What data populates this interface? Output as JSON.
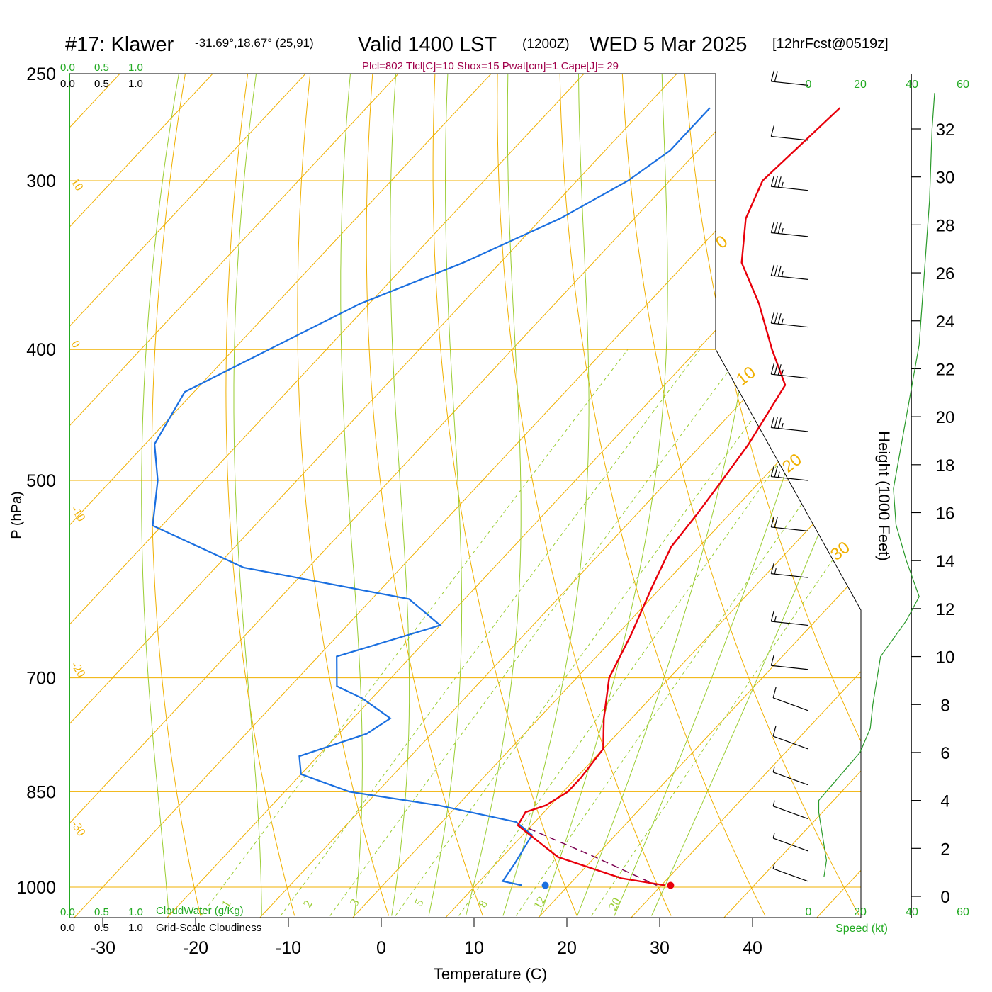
{
  "header": {
    "station": "#17: Klawer",
    "coords": "-31.69°,18.67° (25,91)",
    "valid": "Valid 1400 LST",
    "utc": "(1200Z)",
    "date": "WED 5 Mar 2025",
    "forecast": "[12hrFcst@0519z]",
    "indices": "Plcl=802 Tlcl[C]=10 Shox=15 Pwat[cm]=1 Cape[J]= 29"
  },
  "cloud_scale": {
    "top_green": [
      "0.0",
      "0.5",
      "1.0"
    ],
    "top_black": [
      "0.0",
      "0.5",
      "1.0"
    ],
    "bottom_green": [
      "0.0",
      "0.5",
      "1.0"
    ],
    "bottom_black": [
      "0.0",
      "0.5",
      "1.0"
    ],
    "cloudwater_label": "CloudWater (g/Kg)",
    "cloudiness_label": "Grid-Scale Cloudiness"
  },
  "speed_axis": {
    "ticks": [
      "0",
      "20",
      "40",
      "60"
    ],
    "label": "Speed (kt)"
  },
  "colors": {
    "temperature": "#e8000b",
    "dewpoint": "#1a6fe0",
    "isotherm": "#f0b000",
    "dry_adiabat": "#f0b000",
    "moist_adiabat": "#9acd32",
    "mixing_ratio": "#9acd32",
    "parcel": "#7a0050",
    "speed": "#2a9a2a",
    "indices": "#a0004a",
    "green_text": "#22aa22"
  },
  "chart_data": {
    "type": "skew-t",
    "xlabel": "Temperature (C)",
    "ylabel": "P (hPa)",
    "y2label": "Height (1000 Feet)",
    "x_ticks": [
      "-30",
      "-20",
      "-10",
      "0",
      "10",
      "20",
      "30",
      "40"
    ],
    "p_ticks": [
      {
        "p": 250,
        "label": "250"
      },
      {
        "p": 300,
        "label": "300"
      },
      {
        "p": 400,
        "label": "400"
      },
      {
        "p": 500,
        "label": "500"
      },
      {
        "p": 700,
        "label": "700"
      },
      {
        "p": 850,
        "label": "850"
      },
      {
        "p": 1000,
        "label": "1000"
      }
    ],
    "height_ticks": [
      "0",
      "2",
      "4",
      "6",
      "8",
      "10",
      "12",
      "14",
      "16",
      "18",
      "20",
      "22",
      "24",
      "26",
      "28",
      "30",
      "32"
    ],
    "isotherm_labels": [
      "10",
      "0",
      "-10",
      "-20",
      "-30"
    ],
    "dry_adiabat_labels": [
      "0",
      "10",
      "20",
      "30"
    ],
    "mixing_ratio_labels": [
      "1",
      "2",
      "3",
      "5",
      "8",
      "12",
      "20"
    ],
    "temperature_profile": [
      {
        "p": 265,
        "t": -29
      },
      {
        "p": 300,
        "t": -30
      },
      {
        "p": 320,
        "t": -28
      },
      {
        "p": 345,
        "t": -24
      },
      {
        "p": 370,
        "t": -18
      },
      {
        "p": 400,
        "t": -12
      },
      {
        "p": 425,
        "t": -7
      },
      {
        "p": 470,
        "t": -5
      },
      {
        "p": 500,
        "t": -4.2
      },
      {
        "p": 530,
        "t": -3.5
      },
      {
        "p": 560,
        "t": -3
      },
      {
        "p": 600,
        "t": -1
      },
      {
        "p": 650,
        "t": 1.5
      },
      {
        "p": 700,
        "t": 3.5
      },
      {
        "p": 750,
        "t": 7
      },
      {
        "p": 790,
        "t": 10
      },
      {
        "p": 830,
        "t": 10.5
      },
      {
        "p": 850,
        "t": 10.5
      },
      {
        "p": 870,
        "t": 9.5
      },
      {
        "p": 880,
        "t": 8
      },
      {
        "p": 900,
        "t": 8.5
      },
      {
        "p": 950,
        "t": 16
      },
      {
        "p": 985,
        "t": 25
      },
      {
        "p": 997,
        "t": 30.4
      }
    ],
    "dewpoint_profile": [
      {
        "p": 265,
        "t": -43
      },
      {
        "p": 285,
        "t": -43
      },
      {
        "p": 300,
        "t": -44.5
      },
      {
        "p": 320,
        "t": -48
      },
      {
        "p": 345,
        "t": -54
      },
      {
        "p": 370,
        "t": -61
      },
      {
        "p": 430,
        "t": -71
      },
      {
        "p": 470,
        "t": -69
      },
      {
        "p": 500,
        "t": -65
      },
      {
        "p": 540,
        "t": -61
      },
      {
        "p": 580,
        "t": -47
      },
      {
        "p": 612,
        "t": -26
      },
      {
        "p": 640,
        "t": -20
      },
      {
        "p": 675,
        "t": -28
      },
      {
        "p": 710,
        "t": -25
      },
      {
        "p": 725,
        "t": -21
      },
      {
        "p": 750,
        "t": -16
      },
      {
        "p": 770,
        "t": -17
      },
      {
        "p": 800,
        "t": -22
      },
      {
        "p": 825,
        "t": -20
      },
      {
        "p": 850,
        "t": -13
      },
      {
        "p": 870,
        "t": -2
      },
      {
        "p": 895,
        "t": 8
      },
      {
        "p": 915,
        "t": 11
      },
      {
        "p": 960,
        "t": 12
      },
      {
        "p": 990,
        "t": 12.5
      },
      {
        "p": 997,
        "t": 15
      }
    ],
    "parcel_path": [
      {
        "p": 905,
        "t": 10
      },
      {
        "p": 950,
        "t": 20
      },
      {
        "p": 997,
        "t": 29.5
      }
    ],
    "surface_temp": {
      "p": 997,
      "t": 31
    },
    "surface_dewpoint": {
      "p": 997,
      "t": 17.5
    },
    "wind_barbs": [
      {
        "p": 255,
        "kt": 20
      },
      {
        "p": 280,
        "kt": 10
      },
      {
        "p": 305,
        "kt": 35
      },
      {
        "p": 330,
        "kt": 35
      },
      {
        "p": 355,
        "kt": 35
      },
      {
        "p": 385,
        "kt": 35
      },
      {
        "p": 420,
        "kt": 35
      },
      {
        "p": 460,
        "kt": 35
      },
      {
        "p": 500,
        "kt": 25
      },
      {
        "p": 545,
        "kt": 20
      },
      {
        "p": 590,
        "kt": 15
      },
      {
        "p": 640,
        "kt": 15
      },
      {
        "p": 690,
        "kt": 10
      },
      {
        "p": 740,
        "kt": 10
      },
      {
        "p": 790,
        "kt": 10
      },
      {
        "p": 840,
        "kt": 5
      },
      {
        "p": 890,
        "kt": 5
      },
      {
        "p": 940,
        "kt": 5
      },
      {
        "p": 990,
        "kt": 5
      }
    ],
    "speed_profile": [
      {
        "h": 0.8,
        "s": 6
      },
      {
        "h": 1.5,
        "s": 7
      },
      {
        "h": 3.5,
        "s": 4
      },
      {
        "h": 4,
        "s": 4
      },
      {
        "h": 5,
        "s": 12
      },
      {
        "h": 6,
        "s": 20
      },
      {
        "h": 7,
        "s": 24
      },
      {
        "h": 8,
        "s": 25
      },
      {
        "h": 10,
        "s": 28
      },
      {
        "h": 11.5,
        "s": 38
      },
      {
        "h": 12.5,
        "s": 43
      },
      {
        "h": 14,
        "s": 38
      },
      {
        "h": 15.5,
        "s": 34
      },
      {
        "h": 17,
        "s": 33
      },
      {
        "h": 20,
        "s": 38
      },
      {
        "h": 23,
        "s": 43
      },
      {
        "h": 26,
        "s": 45
      },
      {
        "h": 29,
        "s": 47
      },
      {
        "h": 32,
        "s": 48
      },
      {
        "h": 33.5,
        "s": 49
      }
    ]
  }
}
